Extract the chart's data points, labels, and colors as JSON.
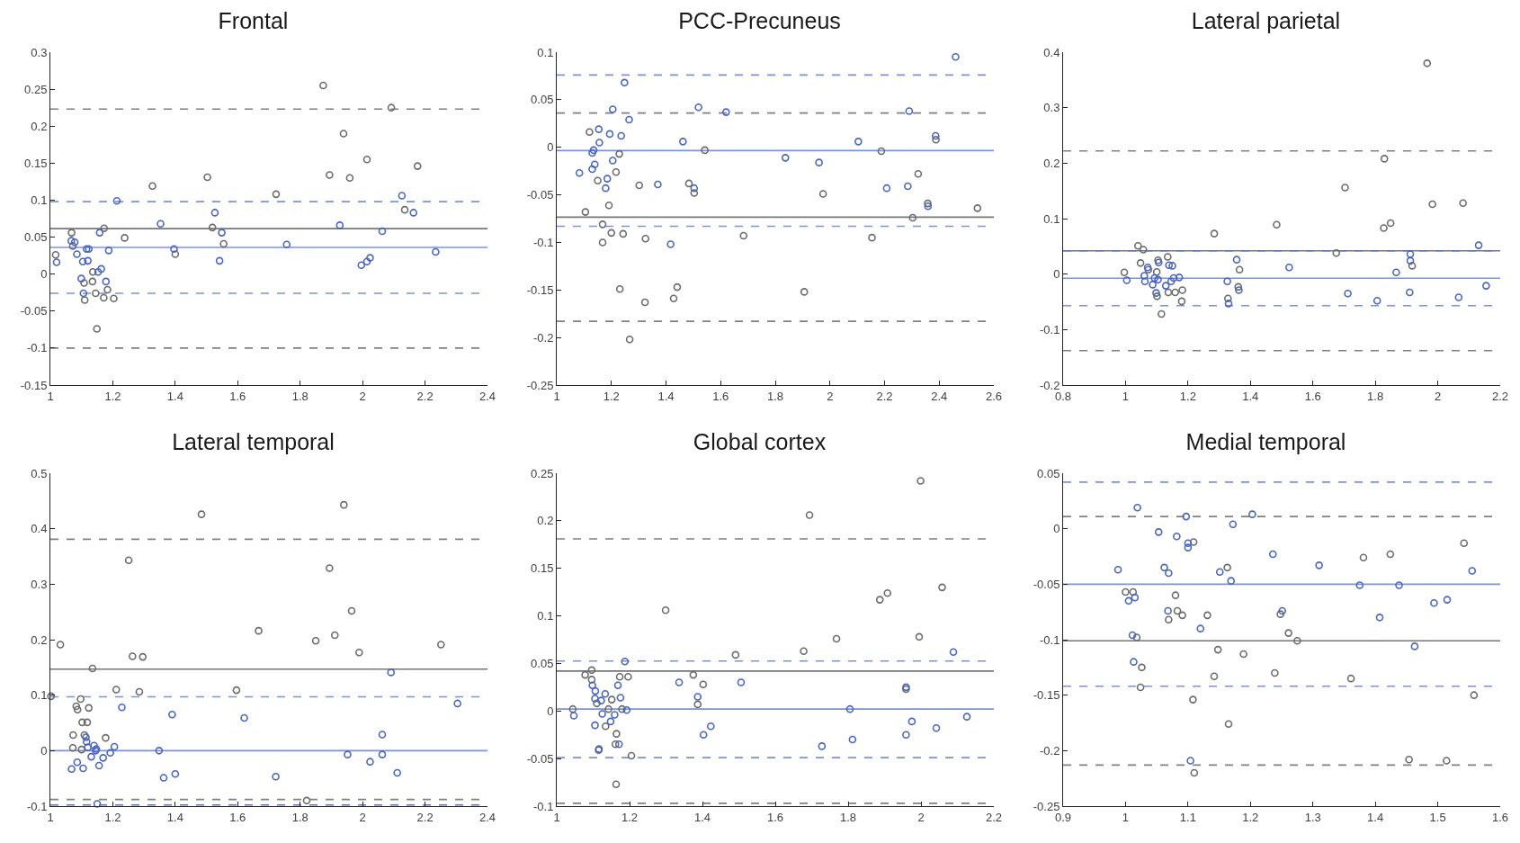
{
  "chart_data": [
    {
      "type": "scatter",
      "title": "Frontal",
      "marker": "circle",
      "grid": false,
      "xlim": [
        1,
        2.4
      ],
      "xticks": [
        1,
        1.2,
        1.4,
        1.6,
        1.8,
        2,
        2.2,
        2.4
      ],
      "ylim": [
        -0.15,
        0.3
      ],
      "yticks": [
        -0.15,
        -0.1,
        -0.05,
        0,
        0.05,
        0.1,
        0.15,
        0.2,
        0.25,
        0.3
      ],
      "ref_lines": [
        {
          "axis": "y",
          "value": 0.0615,
          "color": "#767676",
          "line_style": "solid"
        },
        {
          "axis": "y",
          "value": 0.223,
          "color": "#808080",
          "line_style": "dashed"
        },
        {
          "axis": "y",
          "value": -0.1,
          "color": "#808080",
          "line_style": "dashed"
        },
        {
          "axis": "y",
          "value": 0.036,
          "color": "#7b93d8",
          "line_style": "solid"
        },
        {
          "axis": "y",
          "value": 0.098,
          "color": "#7b93d8",
          "line_style": "dashed"
        },
        {
          "axis": "y",
          "value": -0.026,
          "color": "#7b93d8",
          "line_style": "dashed"
        }
      ],
      "series": [
        {
          "color": "#6b6b6b",
          "x": [
            1.017,
            1.068,
            1.072,
            1.136,
            1.135,
            1.108,
            1.11,
            1.145,
            1.171,
            1.203,
            1.183,
            1.172,
            1.149,
            1.238,
            1.327,
            1.503,
            1.519,
            1.555,
            1.4,
            1.723,
            1.874,
            1.894,
            1.939,
            1.959,
            2.014,
            2.092,
            2.135,
            2.176
          ],
          "values": [
            0.026,
            0.056,
            0.038,
            0.003,
            -0.01,
            -0.012,
            -0.035,
            -0.026,
            -0.032,
            -0.033,
            -0.021,
            0.062,
            -0.074,
            0.049,
            0.119,
            0.131,
            0.063,
            0.041,
            0.027,
            0.108,
            0.255,
            0.134,
            0.19,
            0.13,
            0.155,
            0.225,
            0.087,
            0.146
          ]
        },
        {
          "color": "#4866c2",
          "x": [
            1.02,
            1.067,
            1.078,
            1.085,
            1.104,
            1.12,
            1.116,
            1.123,
            1.099,
            1.106,
            1.158,
            1.163,
            1.153,
            1.178,
            1.187,
            1.213,
            1.353,
            1.396,
            1.527,
            1.549,
            1.542,
            1.757,
            1.927,
            1.996,
            2.014,
            2.024,
            2.063,
            2.126,
            2.163,
            2.234
          ],
          "values": [
            0.016,
            0.045,
            0.043,
            0.027,
            0.017,
            0.018,
            0.034,
            0.034,
            -0.006,
            -0.026,
            0.056,
            0.007,
            0.003,
            -0.01,
            0.032,
            0.099,
            0.068,
            0.034,
            0.083,
            0.056,
            0.018,
            0.04,
            0.066,
            0.012,
            0.017,
            0.022,
            0.058,
            0.106,
            0.083,
            0.03
          ]
        }
      ]
    },
    {
      "type": "scatter",
      "title": "PCC-Precuneus",
      "marker": "circle",
      "grid": false,
      "xlim": [
        1,
        2.6
      ],
      "xticks": [
        1,
        1.2,
        1.4,
        1.6,
        1.8,
        2,
        2.2,
        2.4,
        2.6
      ],
      "ylim": [
        -0.25,
        0.1
      ],
      "yticks": [
        -0.25,
        -0.2,
        -0.15,
        -0.1,
        -0.05,
        0,
        0.05,
        0.1
      ],
      "ref_lines": [
        {
          "axis": "y",
          "value": -0.0735,
          "color": "#767676",
          "line_style": "solid"
        },
        {
          "axis": "y",
          "value": 0.036,
          "color": "#808080",
          "line_style": "dashed"
        },
        {
          "axis": "y",
          "value": -0.183,
          "color": "#808080",
          "line_style": "dashed"
        },
        {
          "axis": "y",
          "value": -0.0035,
          "color": "#7b93d8",
          "line_style": "solid"
        },
        {
          "axis": "y",
          "value": 0.076,
          "color": "#7b93d8",
          "line_style": "dashed"
        },
        {
          "axis": "y",
          "value": -0.083,
          "color": "#7b93d8",
          "line_style": "dashed"
        }
      ],
      "series": [
        {
          "color": "#6b6b6b",
          "x": [
            1.12,
            1.105,
            1.15,
            1.168,
            1.168,
            1.191,
            1.2,
            1.217,
            1.229,
            1.243,
            1.231,
            1.267,
            1.302,
            1.325,
            1.323,
            1.428,
            1.441,
            1.484,
            1.503,
            1.542,
            1.684,
            1.906,
            1.975,
            2.154,
            2.188,
            2.303,
            2.323,
            2.358,
            2.388,
            2.54
          ],
          "values": [
            0.016,
            -0.068,
            -0.035,
            -0.081,
            -0.1,
            -0.061,
            -0.09,
            -0.026,
            -0.007,
            -0.091,
            -0.149,
            -0.202,
            -0.04,
            -0.096,
            -0.163,
            -0.159,
            -0.147,
            -0.038,
            -0.048,
            -0.003,
            -0.093,
            -0.152,
            -0.049,
            -0.095,
            -0.004,
            -0.074,
            -0.028,
            -0.059,
            0.008,
            -0.064
          ]
        },
        {
          "color": "#4866c2",
          "x": [
            1.083,
            1.13,
            1.13,
            1.135,
            1.139,
            1.154,
            1.156,
            1.179,
            1.185,
            1.194,
            1.205,
            1.205,
            1.236,
            1.248,
            1.265,
            1.37,
            1.417,
            1.462,
            1.503,
            1.519,
            1.62,
            1.837,
            1.96,
            2.104,
            2.208,
            2.285,
            2.29,
            2.359,
            2.387,
            2.46
          ],
          "values": [
            -0.027,
            -0.023,
            -0.006,
            -0.003,
            -0.018,
            0.019,
            0.005,
            -0.043,
            -0.033,
            0.014,
            -0.014,
            0.04,
            0.012,
            0.068,
            0.029,
            -0.039,
            -0.102,
            0.006,
            -0.043,
            0.042,
            0.037,
            -0.011,
            -0.016,
            0.006,
            -0.043,
            -0.041,
            0.038,
            -0.062,
            0.012,
            0.095
          ]
        }
      ]
    },
    {
      "type": "scatter",
      "title": "Lateral parietal",
      "marker": "circle",
      "grid": false,
      "xlim": [
        0.8,
        2.2
      ],
      "xticks": [
        0.8,
        1,
        1.2,
        1.4,
        1.6,
        1.8,
        2,
        2.2
      ],
      "ylim": [
        -0.2,
        0.4
      ],
      "yticks": [
        -0.2,
        -0.1,
        0,
        0.1,
        0.2,
        0.3,
        0.4
      ],
      "ref_lines": [
        {
          "axis": "y",
          "value": 0.042,
          "color": "#767676",
          "line_style": "solid"
        },
        {
          "axis": "y",
          "value": 0.222,
          "color": "#808080",
          "line_style": "dashed"
        },
        {
          "axis": "y",
          "value": -0.138,
          "color": "#808080",
          "line_style": "dashed"
        },
        {
          "axis": "y",
          "value": -0.0075,
          "color": "#7b93d8",
          "line_style": "solid"
        },
        {
          "axis": "y",
          "value": 0.042,
          "color": "#5a74cc",
          "line_style": "dashed"
        },
        {
          "axis": "y",
          "value": -0.057,
          "color": "#7b93d8",
          "line_style": "dashed"
        }
      ],
      "series": [
        {
          "color": "#6b6b6b",
          "x": [
            0.996,
            1.04,
            1.057,
            1.048,
            1.073,
            1.1,
            1.104,
            1.135,
            1.101,
            1.115,
            1.137,
            1.159,
            1.182,
            1.18,
            1.284,
            1.328,
            1.361,
            1.365,
            1.484,
            1.675,
            1.703,
            1.827,
            1.829,
            1.849,
            1.918,
            1.966,
            1.983,
            2.081
          ],
          "values": [
            0.003,
            0.051,
            0.044,
            0.02,
            0.008,
            0.004,
            0.025,
            0.031,
            -0.04,
            -0.072,
            -0.033,
            -0.033,
            -0.029,
            -0.049,
            0.073,
            -0.044,
            -0.023,
            0.008,
            0.089,
            0.038,
            0.156,
            0.083,
            0.208,
            0.092,
            0.015,
            0.38,
            0.126,
            0.128
          ]
        },
        {
          "color": "#4866c2",
          "x": [
            1.004,
            1.06,
            1.062,
            1.071,
            1.087,
            1.093,
            1.106,
            1.104,
            1.098,
            1.129,
            1.139,
            1.15,
            1.146,
            1.154,
            1.172,
            1.326,
            1.33,
            1.356,
            1.363,
            1.524,
            1.712,
            1.806,
            1.867,
            1.912,
            1.912,
            1.91,
            2.067,
            2.131,
            2.155
          ],
          "values": [
            -0.011,
            -0.003,
            -0.013,
            0.012,
            -0.019,
            -0.007,
            0.021,
            -0.01,
            -0.034,
            -0.021,
            0.016,
            0.015,
            -0.013,
            -0.007,
            -0.006,
            -0.013,
            -0.053,
            0.026,
            -0.029,
            0.012,
            -0.035,
            -0.048,
            0.003,
            0.036,
            0.024,
            -0.033,
            -0.042,
            0.052,
            -0.021
          ]
        }
      ]
    },
    {
      "type": "scatter",
      "title": "Lateral temporal",
      "marker": "circle",
      "grid": false,
      "xlim": [
        1,
        2.4
      ],
      "xticks": [
        1,
        1.2,
        1.4,
        1.6,
        1.8,
        2,
        2.2,
        2.4
      ],
      "ylim": [
        -0.1,
        0.5
      ],
      "yticks": [
        -0.1,
        0,
        0.1,
        0.2,
        0.3,
        0.4,
        0.5
      ],
      "ref_lines": [
        {
          "axis": "y",
          "value": 0.147,
          "color": "#767676",
          "line_style": "solid"
        },
        {
          "axis": "y",
          "value": 0.381,
          "color": "#808080",
          "line_style": "dashed"
        },
        {
          "axis": "y",
          "value": -0.088,
          "color": "#808080",
          "line_style": "dashed"
        },
        {
          "axis": "y",
          "value": 0,
          "color": "#7b93d8",
          "line_style": "solid"
        },
        {
          "axis": "y",
          "value": 0.097,
          "color": "#7b93d8",
          "line_style": "dashed"
        },
        {
          "axis": "y",
          "value": -0.098,
          "color": "#5a74cc",
          "line_style": "dashed"
        }
      ],
      "series": [
        {
          "color": "#6b6b6b",
          "x": [
            1.002,
            1.032,
            1.073,
            1.072,
            1.083,
            1.087,
            1.097,
            1.102,
            1.118,
            1.123,
            1.109,
            1.1,
            1.135,
            1.177,
            1.211,
            1.251,
            1.263,
            1.296,
            1.285,
            1.484,
            1.596,
            1.667,
            1.821,
            1.85,
            1.894,
            1.911,
            1.94,
            1.965,
            1.989,
            2.251
          ],
          "values": [
            0.098,
            0.191,
            0.028,
            0.005,
            0.08,
            0.074,
            0.093,
            0.051,
            0.051,
            0.077,
            0.028,
            0.002,
            0.148,
            0.023,
            0.11,
            0.343,
            0.17,
            0.169,
            0.106,
            0.426,
            0.109,
            0.216,
            -0.09,
            0.198,
            0.329,
            0.208,
            0.443,
            0.252,
            0.177,
            0.191
          ]
        },
        {
          "color": "#4866c2",
          "x": [
            1.068,
            1.086,
            1.105,
            1.114,
            1.116,
            1.12,
            1.131,
            1.14,
            1.145,
            1.147,
            1.156,
            1.169,
            1.192,
            1.205,
            1.15,
            1.229,
            1.348,
            1.363,
            1.4,
            1.39,
            1.621,
            1.722,
            1.952,
            2.024,
            2.063,
            2.063,
            2.091,
            2.111,
            2.304
          ],
          "values": [
            -0.033,
            -0.021,
            -0.032,
            0.024,
            0.016,
            0.006,
            -0.011,
            0.009,
            0,
            0.003,
            -0.027,
            -0.013,
            -0.004,
            0.007,
            -0.096,
            0.078,
            0,
            -0.049,
            -0.042,
            0.065,
            0.059,
            -0.047,
            -0.007,
            -0.02,
            0.029,
            -0.007,
            0.141,
            -0.04,
            0.085
          ]
        }
      ]
    },
    {
      "type": "scatter",
      "title": "Global cortex",
      "marker": "circle",
      "grid": false,
      "xlim": [
        1,
        2.2
      ],
      "xticks": [
        1,
        1.2,
        1.4,
        1.6,
        1.8,
        2,
        2.2
      ],
      "ylim": [
        -0.1,
        0.25
      ],
      "yticks": [
        -0.1,
        -0.05,
        0,
        0.05,
        0.1,
        0.15,
        0.2,
        0.25
      ],
      "ref_lines": [
        {
          "axis": "y",
          "value": 0.042,
          "color": "#767676",
          "line_style": "solid"
        },
        {
          "axis": "y",
          "value": 0.181,
          "color": "#808080",
          "line_style": "dashed"
        },
        {
          "axis": "y",
          "value": -0.097,
          "color": "#808080",
          "line_style": "dashed"
        },
        {
          "axis": "y",
          "value": 0.002,
          "color": "#7b93d8",
          "line_style": "solid"
        },
        {
          "axis": "y",
          "value": 0.0525,
          "color": "#7b93d8",
          "line_style": "dashed"
        },
        {
          "axis": "y",
          "value": -0.049,
          "color": "#7b93d8",
          "line_style": "dashed"
        }
      ],
      "series": [
        {
          "color": "#6b6b6b",
          "x": [
            1.044,
            1.078,
            1.096,
            1.096,
            1.11,
            1.134,
            1.142,
            1.151,
            1.164,
            1.161,
            1.163,
            1.173,
            1.196,
            1.179,
            1.205,
            1.116,
            1.299,
            1.375,
            1.402,
            1.387,
            1.491,
            1.678,
            1.694,
            1.768,
            1.887,
            1.908,
            1.959,
            1.995,
            1.999,
            2.058
          ],
          "values": [
            0.002,
            0.038,
            0.043,
            0.033,
            0.008,
            -0.016,
            0.002,
            0.012,
            -0.024,
            -0.035,
            -0.077,
            0.036,
            0.036,
            0.002,
            -0.047,
            -0.04,
            0.106,
            0.038,
            0.028,
            0.007,
            0.059,
            0.063,
            0.206,
            0.076,
            0.117,
            0.124,
            0.023,
            0.078,
            0.242,
            0.13
          ]
        },
        {
          "color": "#4866c2",
          "x": [
            1.047,
            1.098,
            1.106,
            1.105,
            1.105,
            1.115,
            1.122,
            1.125,
            1.133,
            1.148,
            1.159,
            1.168,
            1.175,
            1.171,
            1.187,
            1.192,
            1.336,
            1.387,
            1.403,
            1.423,
            1.506,
            1.728,
            1.805,
            1.812,
            1.959,
            1.959,
            1.975,
            2.042,
            2.089,
            2.126
          ],
          "values": [
            -0.005,
            0.027,
            0.021,
            0.013,
            -0.015,
            -0.041,
            0.011,
            -0.003,
            0.018,
            -0.011,
            -0.004,
            0.027,
            0.014,
            -0.035,
            0.052,
            0.001,
            0.03,
            0.015,
            -0.025,
            -0.016,
            0.03,
            -0.037,
            0.002,
            -0.03,
            0.025,
            -0.025,
            -0.011,
            -0.018,
            0.062,
            -0.006
          ]
        }
      ]
    },
    {
      "type": "scatter",
      "title": "Medial temporal",
      "marker": "circle",
      "grid": false,
      "xlim": [
        0.9,
        1.6
      ],
      "xticks": [
        0.9,
        1,
        1.1,
        1.2,
        1.3,
        1.4,
        1.5,
        1.6
      ],
      "ylim": [
        -0.25,
        0.05
      ],
      "yticks": [
        -0.25,
        -0.2,
        -0.15,
        -0.1,
        -0.05,
        0,
        0.05
      ],
      "ref_lines": [
        {
          "axis": "y",
          "value": -0.101,
          "color": "#767676",
          "line_style": "solid"
        },
        {
          "axis": "y",
          "value": 0.011,
          "color": "#808080",
          "line_style": "dashed"
        },
        {
          "axis": "y",
          "value": -0.213,
          "color": "#808080",
          "line_style": "dashed"
        },
        {
          "axis": "y",
          "value": -0.05,
          "color": "#7b93d8",
          "line_style": "solid"
        },
        {
          "axis": "y",
          "value": 0.042,
          "color": "#7b93d8",
          "line_style": "dashed"
        },
        {
          "axis": "y",
          "value": -0.142,
          "color": "#7b93d8",
          "line_style": "dashed"
        }
      ],
      "series": [
        {
          "color": "#6b6b6b",
          "x": [
            1,
            1.012,
            1.018,
            1.026,
            1.024,
            1.069,
            1.08,
            1.083,
            1.091,
            1.109,
            1.108,
            1.11,
            1.131,
            1.142,
            1.148,
            1.163,
            1.165,
            1.189,
            1.239,
            1.248,
            1.261,
            1.275,
            1.361,
            1.381,
            1.424,
            1.454,
            1.514,
            1.542,
            1.558
          ],
          "values": [
            -0.057,
            -0.057,
            -0.098,
            -0.125,
            -0.143,
            -0.082,
            -0.06,
            -0.074,
            -0.078,
            -0.012,
            -0.154,
            -0.22,
            -0.078,
            -0.133,
            -0.109,
            -0.035,
            -0.176,
            -0.113,
            -0.13,
            -0.077,
            -0.094,
            -0.101,
            -0.135,
            -0.026,
            -0.023,
            -0.208,
            -0.209,
            -0.013,
            -0.15
          ]
        },
        {
          "color": "#4866c2",
          "x": [
            0.988,
            1.005,
            1.015,
            1.011,
            1.013,
            1.019,
            1.053,
            1.062,
            1.069,
            1.068,
            1.082,
            1.097,
            1.1,
            1.1,
            1.104,
            1.12,
            1.151,
            1.169,
            1.172,
            1.203,
            1.236,
            1.251,
            1.31,
            1.375,
            1.407,
            1.438,
            1.463,
            1.494,
            1.515,
            1.555
          ],
          "values": [
            -0.037,
            -0.065,
            -0.062,
            -0.096,
            -0.12,
            0.019,
            -0.003,
            -0.035,
            -0.04,
            -0.074,
            -0.007,
            0.011,
            -0.013,
            -0.017,
            -0.209,
            -0.09,
            -0.039,
            -0.047,
            0.004,
            0.013,
            -0.023,
            -0.074,
            -0.033,
            -0.051,
            -0.08,
            -0.051,
            -0.106,
            -0.067,
            -0.064,
            -0.038
          ]
        }
      ]
    }
  ]
}
